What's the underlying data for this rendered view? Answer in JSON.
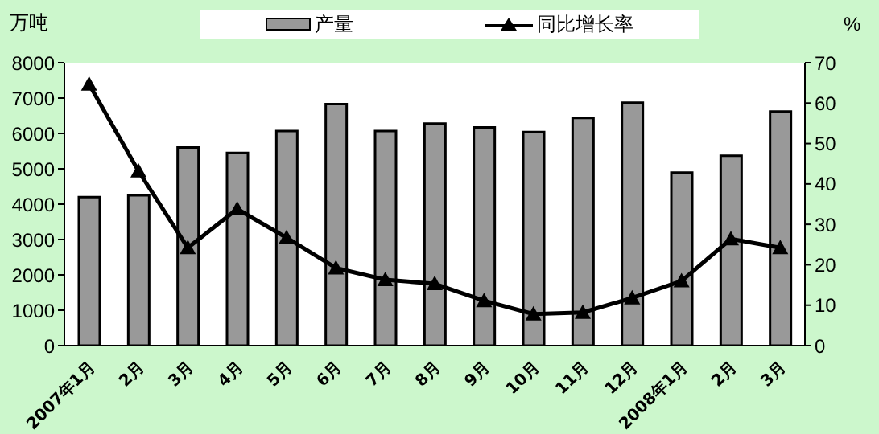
{
  "chart_data": {
    "type": "bar",
    "ylabel": "万吨",
    "y2label": "%",
    "categories": [
      "2007年1月",
      "2月",
      "3月",
      "4月",
      "5月",
      "6月",
      "7月",
      "8月",
      "9月",
      "10月",
      "11月",
      "12月",
      "2008年1月",
      "2月",
      "3月"
    ],
    "series": [
      {
        "name": "产量",
        "color": "#999999",
        "values": [
          4200,
          4250,
          5600,
          5450,
          6070,
          6830,
          6070,
          6280,
          6170,
          6040,
          6440,
          6870,
          4890,
          5370,
          6620
        ]
      },
      {
        "name": "同比增长率",
        "type": "line",
        "axis": "y2",
        "color": "#000000",
        "marker": "triangle",
        "values": [
          64.7,
          43.2,
          24.2,
          33.8,
          26.7,
          19.2,
          16.3,
          15.3,
          11.1,
          7.8,
          8.2,
          11.8,
          16,
          26.4,
          24.2
        ]
      }
    ],
    "ylim": [
      0,
      8000
    ],
    "yticks": [
      0,
      1000,
      2000,
      3000,
      4000,
      5000,
      6000,
      7000,
      8000
    ],
    "y2lim": [
      0,
      70
    ],
    "y2ticks": [
      0,
      10,
      20,
      30,
      40,
      50,
      60,
      70
    ],
    "legend": "top",
    "grid": false
  }
}
